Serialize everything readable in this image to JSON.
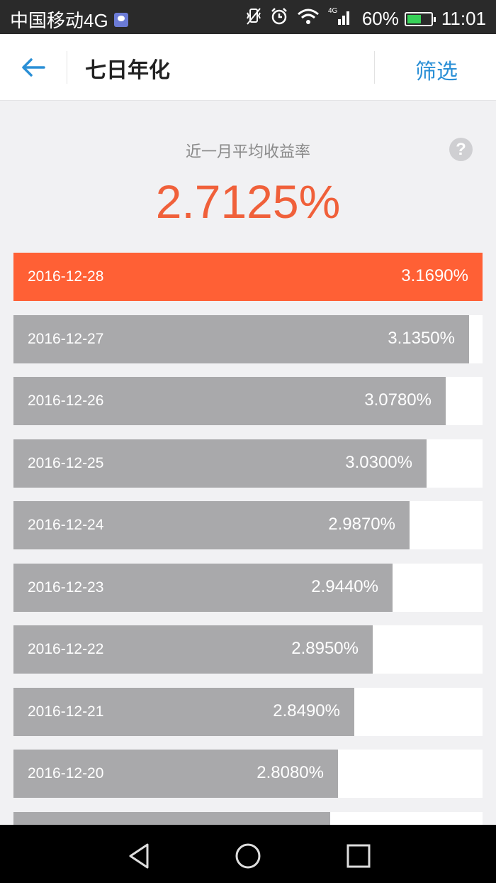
{
  "status_bar": {
    "carrier": "中国移动4G",
    "network": "4G",
    "battery_percent": "60%",
    "battery_level": 0.6,
    "time": "11:01",
    "icons": [
      "notification-icon",
      "vibrate-icon",
      "alarm-icon",
      "wifi-icon",
      "signal-icon",
      "battery-icon"
    ]
  },
  "header": {
    "title": "七日年化",
    "filter_label": "筛选",
    "accent_color": "#2a8fd6"
  },
  "summary": {
    "label": "近一月平均收益率",
    "value": "2.7125%",
    "value_color": "#f0603a"
  },
  "rates": {
    "max_value": 3.169,
    "highlight_color": "#ff6035",
    "bar_color": "#a9a9ab",
    "items": [
      {
        "date": "2016-12-28",
        "value": 3.169,
        "label": "3.1690%"
      },
      {
        "date": "2016-12-27",
        "value": 3.135,
        "label": "3.1350%"
      },
      {
        "date": "2016-12-26",
        "value": 3.078,
        "label": "3.0780%"
      },
      {
        "date": "2016-12-25",
        "value": 3.03,
        "label": "3.0300%"
      },
      {
        "date": "2016-12-24",
        "value": 2.987,
        "label": "2.9870%"
      },
      {
        "date": "2016-12-23",
        "value": 2.944,
        "label": "2.9440%"
      },
      {
        "date": "2016-12-22",
        "value": 2.895,
        "label": "2.8950%"
      },
      {
        "date": "2016-12-21",
        "value": 2.849,
        "label": "2.8490%"
      },
      {
        "date": "2016-12-20",
        "value": 2.808,
        "label": "2.8080%"
      },
      {
        "date": "",
        "value": 2.79,
        "label": ""
      }
    ]
  },
  "navigation": {
    "buttons": [
      "back-nav-icon",
      "home-nav-icon",
      "recents-nav-icon"
    ]
  }
}
